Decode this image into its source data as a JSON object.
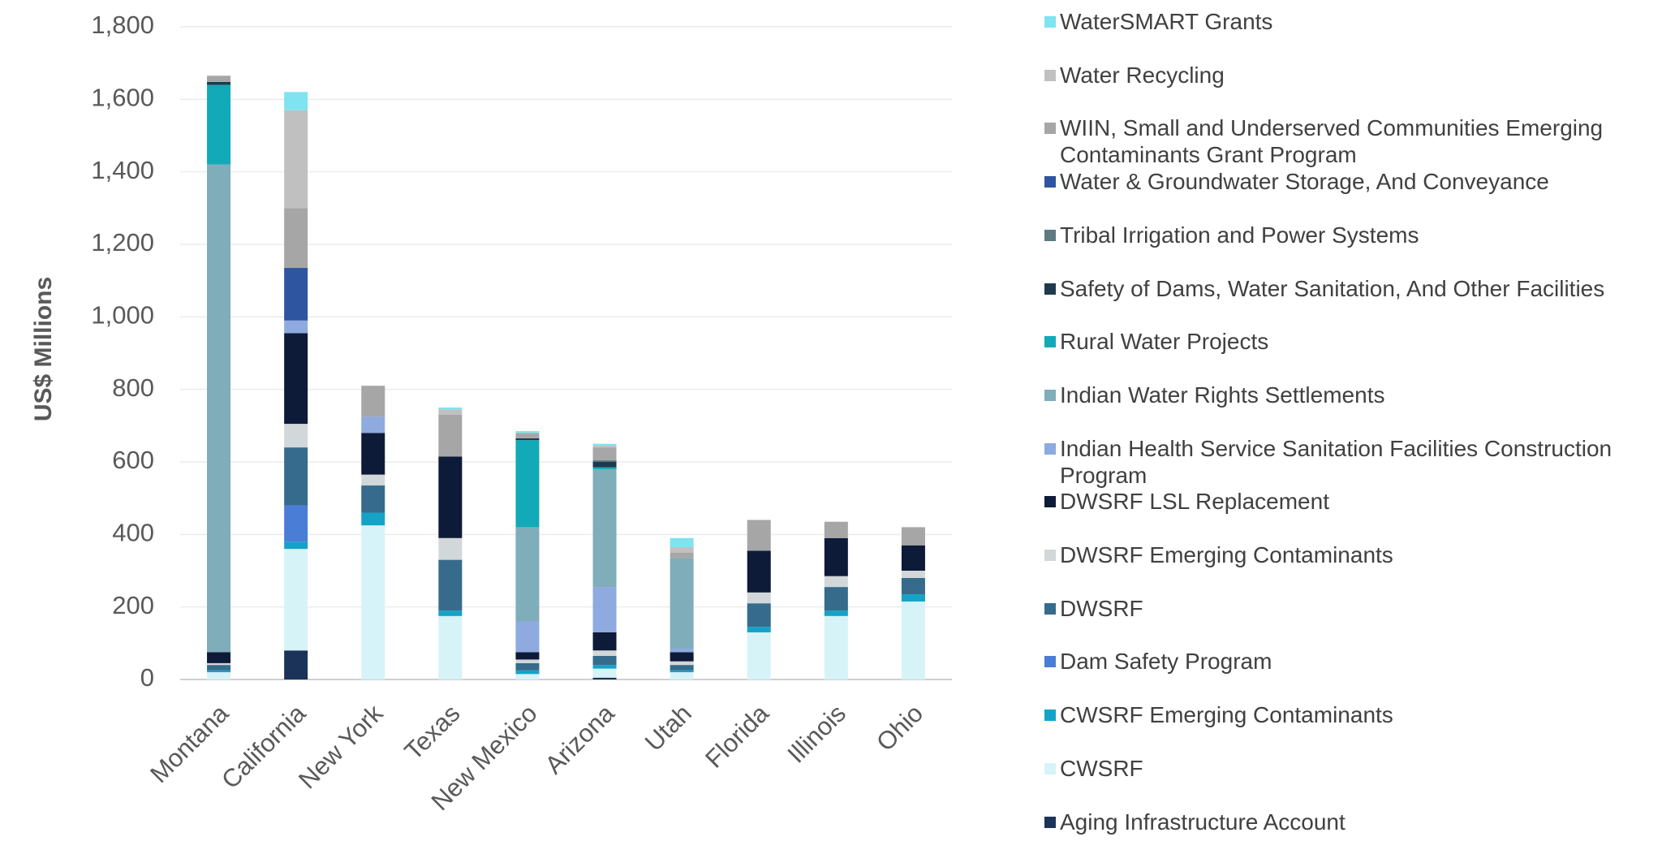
{
  "chart_data": {
    "type": "stacked_bar",
    "y_label": "US$ Millions",
    "categories": [
      "Montana",
      "California",
      "New York",
      "Texas",
      "New Mexico",
      "Arizona",
      "Utah",
      "Florida",
      "Illinois",
      "Ohio"
    ],
    "ylim": [
      0,
      1800
    ],
    "yticks": [
      0,
      200,
      400,
      600,
      800,
      {
        "value": 1000,
        "label": "1,000"
      },
      {
        "value": 1200,
        "label": "1,200"
      },
      {
        "value": 1400,
        "label": "1,400"
      },
      {
        "value": 1600,
        "label": "1,600"
      },
      {
        "value": 1800,
        "label": "1,800"
      }
    ],
    "grid": true,
    "legend": "right",
    "series": [
      {
        "name": "Aging Infrastructure Account",
        "color": "#1b3358",
        "values": [
          0,
          80,
          0,
          0,
          0,
          5,
          0,
          0,
          0,
          0
        ]
      },
      {
        "name": "CWSRF",
        "color": "#d6f3f8",
        "values": [
          20,
          280,
          425,
          175,
          15,
          25,
          20,
          130,
          175,
          215
        ]
      },
      {
        "name": "CWSRF Emerging Contaminants",
        "color": "#14a3c7",
        "values": [
          5,
          20,
          35,
          15,
          10,
          10,
          5,
          15,
          15,
          20
        ]
      },
      {
        "name": "Dam Safety Program",
        "color": "#4a7ed6",
        "values": [
          0,
          100,
          0,
          0,
          0,
          0,
          0,
          0,
          0,
          0
        ]
      },
      {
        "name": "DWSRF",
        "color": "#366b8c",
        "values": [
          15,
          160,
          75,
          140,
          20,
          25,
          15,
          65,
          65,
          45
        ]
      },
      {
        "name": "DWSRF Emerging Contaminants",
        "color": "#d2d7d9",
        "values": [
          5,
          65,
          30,
          60,
          10,
          15,
          10,
          30,
          30,
          20
        ]
      },
      {
        "name": "DWSRF LSL Replacement",
        "color": "#0d1b38",
        "values": [
          30,
          250,
          115,
          225,
          20,
          50,
          25,
          115,
          105,
          70
        ]
      },
      {
        "name": "Indian Health Service Sanitation Facilities Construction Program",
        "color": "#8eaadf",
        "values": [
          0,
          35,
          45,
          0,
          85,
          125,
          10,
          0,
          0,
          0
        ]
      },
      {
        "name": "Indian Water Rights Settlements",
        "color": "#7fadb9",
        "values": [
          1345,
          0,
          0,
          0,
          260,
          325,
          250,
          0,
          0,
          0
        ]
      },
      {
        "name": "Rural Water Projects",
        "color": "#12aab8",
        "values": [
          220,
          0,
          0,
          0,
          240,
          5,
          0,
          0,
          0,
          0
        ]
      },
      {
        "name": "Safety of Dams, Water Sanitation, And Other Facilities",
        "color": "#1f3a4d",
        "values": [
          8,
          0,
          0,
          0,
          5,
          15,
          0,
          0,
          0,
          0
        ]
      },
      {
        "name": "Tribal Irrigation and Power Systems",
        "color": "#5f7a80",
        "values": [
          0,
          0,
          0,
          0,
          0,
          5,
          0,
          0,
          0,
          0
        ]
      },
      {
        "name": "Water & Groundwater Storage, And Conveyance",
        "color": "#2e55a0",
        "values": [
          0,
          145,
          0,
          0,
          0,
          0,
          0,
          0,
          0,
          0
        ]
      },
      {
        "name": "WIIN, Small and Underserved Communities Emerging Contaminants Grant Program",
        "color": "#a6a6a6",
        "values": [
          17,
          165,
          85,
          115,
          15,
          35,
          15,
          85,
          45,
          50
        ]
      },
      {
        "name": "Water Recycling",
        "color": "#c0c0c0",
        "values": [
          0,
          270,
          0,
          15,
          0,
          5,
          15,
          0,
          0,
          0
        ]
      },
      {
        "name": "WaterSMART Grants",
        "color": "#7fe3f0",
        "values": [
          0,
          50,
          0,
          5,
          5,
          5,
          25,
          0,
          0,
          0
        ]
      }
    ]
  }
}
